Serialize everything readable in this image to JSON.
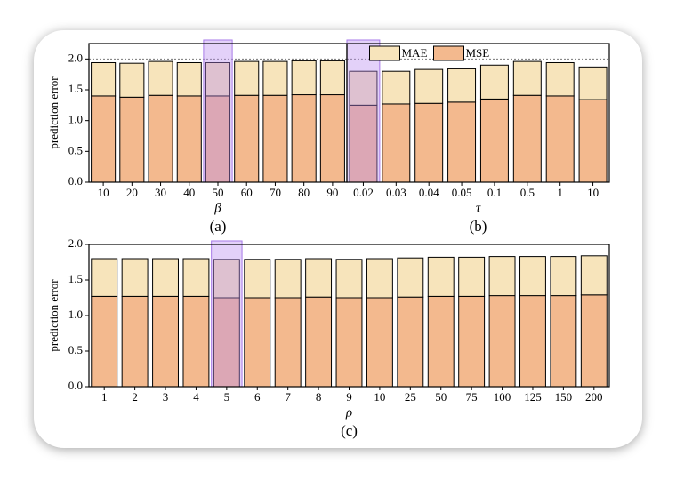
{
  "chart_data": [
    {
      "type": "bar",
      "stacked": true,
      "ylabel": "prediction error",
      "xlabel": "β",
      "caption": "(a)",
      "categories": [
        "10",
        "20",
        "30",
        "40",
        "50",
        "60",
        "70",
        "80",
        "90"
      ],
      "series": [
        {
          "color": "#f7e4bb",
          "values": [
            0.54,
            0.55,
            0.55,
            0.54,
            0.54,
            0.55,
            0.55,
            0.55,
            0.55
          ]
        },
        {
          "color": "#f3b98e",
          "values": [
            1.4,
            1.38,
            1.41,
            1.4,
            1.4,
            1.41,
            1.41,
            1.42,
            1.42
          ]
        }
      ],
      "ylim": [
        0,
        2.25
      ],
      "yticks": [
        {
          "value": 0,
          "label": "0.0"
        },
        {
          "value": 0.5,
          "label": "0.5"
        },
        {
          "value": 1,
          "label": "1.0"
        },
        {
          "value": 1.5,
          "label": "1.5"
        },
        {
          "value": 2,
          "label": "2.0"
        }
      ],
      "reference_line": 2,
      "highlight_index": 4
    },
    {
      "type": "bar",
      "stacked": true,
      "xlabel": "τ",
      "caption": "(b)",
      "categories": [
        "0.02",
        "0.03",
        "0.04",
        "0.05",
        "0.1",
        "0.5",
        "1",
        "10"
      ],
      "series": [
        {
          "name": "MAE",
          "color": "#f7e4bb",
          "values": [
            0.55,
            0.53,
            0.55,
            0.54,
            0.55,
            0.55,
            0.54,
            0.53
          ]
        },
        {
          "name": "MSE",
          "color": "#f3b98e",
          "values": [
            1.25,
            1.27,
            1.28,
            1.3,
            1.35,
            1.41,
            1.4,
            1.34
          ]
        }
      ],
      "ylim": [
        0,
        2.25
      ],
      "reference_line": 2,
      "highlight_index": 0,
      "legend": "upper center"
    },
    {
      "type": "bar",
      "stacked": true,
      "ylabel": "prediction error",
      "xlabel": "ρ",
      "caption": "(c)",
      "categories": [
        "1",
        "2",
        "3",
        "4",
        "5",
        "6",
        "7",
        "8",
        "9",
        "10",
        "25",
        "50",
        "75",
        "100",
        "125",
        "150",
        "200"
      ],
      "series": [
        {
          "color": "#f7e4bb",
          "values": [
            0.53,
            0.53,
            0.53,
            0.53,
            0.54,
            0.54,
            0.54,
            0.54,
            0.54,
            0.55,
            0.55,
            0.55,
            0.55,
            0.55,
            0.55,
            0.55,
            0.55
          ]
        },
        {
          "color": "#f3b98e",
          "values": [
            1.27,
            1.27,
            1.27,
            1.27,
            1.25,
            1.25,
            1.25,
            1.26,
            1.25,
            1.25,
            1.26,
            1.27,
            1.27,
            1.28,
            1.28,
            1.28,
            1.29
          ]
        }
      ],
      "ylim": [
        0,
        2
      ],
      "yticks": [
        {
          "value": 0,
          "label": "0.0"
        },
        {
          "value": 0.5,
          "label": "0.5"
        },
        {
          "value": 1,
          "label": "1.0"
        },
        {
          "value": 1.5,
          "label": "1.5"
        },
        {
          "value": 2,
          "label": "2.0"
        }
      ],
      "highlight_index": 4
    }
  ]
}
